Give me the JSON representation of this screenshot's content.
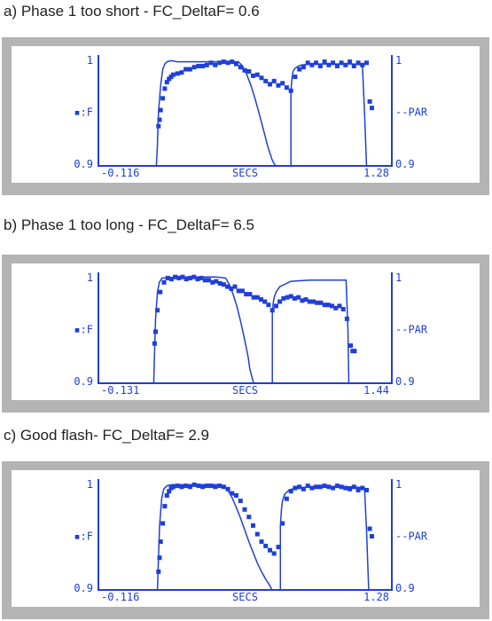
{
  "colors": {
    "frame": "#b4b4b4",
    "plot": "#1f3fd9",
    "caption_text": "#222222",
    "background": "#ffffff"
  },
  "chart_data": [
    {
      "type": "line",
      "title": "a) Phase 1 too short - FC_DeltaF= 0.6",
      "xlabel": "SECS",
      "x_min_label": "-0.116",
      "x_max_label": "1.28",
      "xlim": [
        -0.116,
        1.28
      ],
      "left_axis": {
        "label": "▪:F",
        "top": "1",
        "bottom": "0.9",
        "ylim": [
          0.9,
          1.0
        ]
      },
      "right_axis": {
        "label": "--PAR",
        "top": "1",
        "bottom": "0.9",
        "ylim": [
          0.9,
          1.0
        ]
      },
      "series": [
        {
          "name": "F",
          "style": "markers",
          "x": [
            0.17,
            0.175,
            0.18,
            0.19,
            0.2,
            0.21,
            0.22,
            0.23,
            0.24,
            0.26,
            0.28,
            0.3,
            0.32,
            0.34,
            0.36,
            0.38,
            0.4,
            0.42,
            0.44,
            0.46,
            0.48,
            0.5,
            0.52,
            0.54,
            0.56,
            0.58,
            0.6,
            0.62,
            0.64,
            0.66,
            0.68,
            0.7,
            0.72,
            0.74,
            0.76,
            0.78,
            0.8,
            0.82,
            0.84,
            0.86,
            0.88,
            0.9,
            0.92,
            0.94,
            0.96,
            0.98,
            1.0,
            1.02,
            1.04,
            1.06,
            1.08,
            1.1,
            1.12,
            1.14,
            1.16,
            1.175,
            1.185
          ],
          "y": [
            0.937,
            0.943,
            0.952,
            0.963,
            0.972,
            0.978,
            0.981,
            0.983,
            0.985,
            0.986,
            0.987,
            0.99,
            0.99,
            0.992,
            0.993,
            0.993,
            0.994,
            0.996,
            0.994,
            0.996,
            0.997,
            0.996,
            0.997,
            0.995,
            0.992,
            0.989,
            0.988,
            0.984,
            0.985,
            0.982,
            0.979,
            0.976,
            0.979,
            0.975,
            0.977,
            0.973,
            0.97,
            0.983,
            0.99,
            0.992,
            0.996,
            0.994,
            0.996,
            0.993,
            0.997,
            0.994,
            0.996,
            0.993,
            0.996,
            0.994,
            0.997,
            0.993,
            0.996,
            0.994,
            0.996,
            0.96,
            0.954
          ]
        },
        {
          "name": "PAR",
          "style": "line",
          "x": [
            -0.116,
            0.16,
            0.165,
            0.17,
            0.18,
            0.19,
            0.2,
            0.21,
            0.23,
            0.26,
            0.3,
            0.4,
            0.5,
            0.55,
            0.57,
            0.59,
            0.61,
            0.63,
            0.65,
            0.67,
            0.69,
            0.71,
            0.72,
            0.73,
            0.8,
            0.8,
            0.805,
            0.81,
            0.82,
            0.835,
            0.85,
            0.9,
            1.0,
            1.1,
            1.14,
            1.15,
            1.16,
            1.28
          ],
          "y": [
            0.9,
            0.9,
            0.92,
            0.95,
            0.975,
            0.99,
            0.995,
            0.997,
            0.998,
            0.997,
            0.997,
            0.997,
            0.997,
            0.997,
            0.993,
            0.985,
            0.975,
            0.962,
            0.948,
            0.933,
            0.918,
            0.906,
            0.902,
            0.9,
            0.9,
            0.97,
            0.982,
            0.988,
            0.991,
            0.993,
            0.994,
            0.995,
            0.995,
            0.995,
            0.994,
            0.95,
            0.9,
            0.9
          ]
        }
      ]
    },
    {
      "type": "line",
      "title": "b) Phase 1 too long - FC_DeltaF= 6.5",
      "xlabel": "SECS",
      "x_min_label": "-0.131",
      "x_max_label": "1.44",
      "xlim": [
        -0.131,
        1.44
      ],
      "left_axis": {
        "label": "▪:F",
        "top": "1",
        "bottom": "0.9",
        "ylim": [
          0.9,
          1.0
        ]
      },
      "right_axis": {
        "label": "--PAR",
        "top": "1",
        "bottom": "0.9",
        "ylim": [
          0.9,
          1.0
        ]
      },
      "series": [
        {
          "name": "F",
          "style": "markers",
          "x": [
            0.17,
            0.175,
            0.185,
            0.2,
            0.22,
            0.24,
            0.26,
            0.28,
            0.3,
            0.32,
            0.34,
            0.36,
            0.38,
            0.4,
            0.42,
            0.44,
            0.46,
            0.48,
            0.5,
            0.52,
            0.54,
            0.56,
            0.58,
            0.6,
            0.62,
            0.64,
            0.66,
            0.68,
            0.7,
            0.72,
            0.74,
            0.76,
            0.78,
            0.8,
            0.82,
            0.84,
            0.86,
            0.88,
            0.9,
            0.92,
            0.94,
            0.96,
            0.98,
            1.0,
            1.02,
            1.04,
            1.06,
            1.08,
            1.1,
            1.12,
            1.14,
            1.16,
            1.18,
            1.2,
            1.22,
            1.23,
            1.24
          ],
          "y": [
            0.937,
            0.948,
            0.968,
            0.985,
            0.994,
            0.998,
            0.997,
            0.999,
            0.998,
            0.999,
            0.997,
            0.998,
            0.999,
            0.997,
            0.998,
            0.996,
            0.996,
            0.994,
            0.995,
            0.993,
            0.992,
            0.99,
            0.988,
            0.99,
            0.986,
            0.986,
            0.983,
            0.983,
            0.98,
            0.98,
            0.978,
            0.976,
            0.973,
            0.968,
            0.972,
            0.976,
            0.979,
            0.98,
            0.981,
            0.979,
            0.98,
            0.977,
            0.978,
            0.976,
            0.976,
            0.975,
            0.975,
            0.973,
            0.973,
            0.972,
            0.97,
            0.972,
            0.969,
            0.96,
            0.935,
            0.93,
            0.93
          ]
        },
        {
          "name": "PAR",
          "style": "line",
          "x": [
            -0.131,
            0.165,
            0.17,
            0.175,
            0.185,
            0.195,
            0.21,
            0.23,
            0.3,
            0.4,
            0.5,
            0.55,
            0.57,
            0.59,
            0.61,
            0.63,
            0.65,
            0.67,
            0.68,
            0.7,
            0.8,
            0.8,
            0.805,
            0.81,
            0.82,
            0.84,
            0.9,
            1.0,
            1.1,
            1.15,
            1.195,
            1.205,
            1.21,
            1.44
          ],
          "y": [
            0.9,
            0.9,
            0.93,
            0.96,
            0.985,
            0.994,
            0.998,
            0.998,
            0.999,
            0.999,
            0.999,
            0.998,
            0.992,
            0.983,
            0.972,
            0.958,
            0.942,
            0.925,
            0.913,
            0.9,
            0.9,
            0.965,
            0.975,
            0.98,
            0.985,
            0.99,
            0.995,
            0.996,
            0.996,
            0.996,
            0.996,
            0.95,
            0.9,
            0.9
          ]
        }
      ]
    },
    {
      "type": "line",
      "title": "c) Good flash- FC_DeltaF= 2.9",
      "xlabel": "SECS",
      "x_min_label": "-0.116",
      "x_max_label": "1.28",
      "xlim": [
        -0.116,
        1.28
      ],
      "left_axis": {
        "label": "▪:F",
        "top": "1",
        "bottom": "0.9",
        "ylim": [
          0.9,
          1.0
        ]
      },
      "right_axis": {
        "label": "--PAR",
        "top": "1",
        "bottom": "0.9",
        "ylim": [
          0.9,
          1.0
        ]
      },
      "series": [
        {
          "name": "F",
          "style": "markers",
          "x": [
            0.17,
            0.175,
            0.18,
            0.19,
            0.2,
            0.21,
            0.22,
            0.23,
            0.24,
            0.26,
            0.28,
            0.3,
            0.32,
            0.34,
            0.36,
            0.38,
            0.4,
            0.42,
            0.44,
            0.46,
            0.48,
            0.5,
            0.52,
            0.54,
            0.56,
            0.58,
            0.6,
            0.62,
            0.64,
            0.66,
            0.68,
            0.7,
            0.72,
            0.74,
            0.76,
            0.78,
            0.8,
            0.82,
            0.84,
            0.86,
            0.88,
            0.9,
            0.92,
            0.94,
            0.96,
            0.98,
            1.0,
            1.02,
            1.04,
            1.06,
            1.08,
            1.1,
            1.12,
            1.14,
            1.16,
            1.175,
            1.185
          ],
          "y": [
            0.917,
            0.93,
            0.945,
            0.962,
            0.978,
            0.988,
            0.992,
            0.995,
            0.996,
            0.997,
            0.996,
            0.997,
            0.996,
            0.998,
            0.997,
            0.996,
            0.997,
            0.997,
            0.996,
            0.997,
            0.996,
            0.994,
            0.99,
            0.988,
            0.983,
            0.975,
            0.968,
            0.96,
            0.952,
            0.945,
            0.941,
            0.937,
            0.934,
            0.94,
            0.962,
            0.985,
            0.992,
            0.995,
            0.996,
            0.994,
            0.997,
            0.995,
            0.996,
            0.996,
            0.997,
            0.996,
            0.995,
            0.997,
            0.996,
            0.995,
            0.994,
            0.996,
            0.993,
            0.995,
            0.993,
            0.957,
            0.95
          ]
        },
        {
          "name": "PAR",
          "style": "line",
          "x": [
            -0.116,
            0.165,
            0.17,
            0.175,
            0.185,
            0.195,
            0.21,
            0.23,
            0.3,
            0.4,
            0.45,
            0.48,
            0.5,
            0.52,
            0.54,
            0.56,
            0.58,
            0.6,
            0.62,
            0.64,
            0.66,
            0.68,
            0.7,
            0.71,
            0.75,
            0.75,
            0.755,
            0.76,
            0.77,
            0.79,
            0.82,
            0.9,
            1.0,
            1.1,
            1.15,
            1.16,
            1.17,
            1.28
          ],
          "y": [
            0.9,
            0.9,
            0.93,
            0.96,
            0.985,
            0.994,
            0.997,
            0.998,
            0.998,
            0.998,
            0.998,
            0.997,
            0.993,
            0.986,
            0.977,
            0.967,
            0.956,
            0.945,
            0.935,
            0.925,
            0.917,
            0.91,
            0.904,
            0.9,
            0.9,
            0.96,
            0.975,
            0.983,
            0.989,
            0.993,
            0.995,
            0.996,
            0.996,
            0.996,
            0.995,
            0.955,
            0.9,
            0.9
          ]
        }
      ]
    }
  ]
}
